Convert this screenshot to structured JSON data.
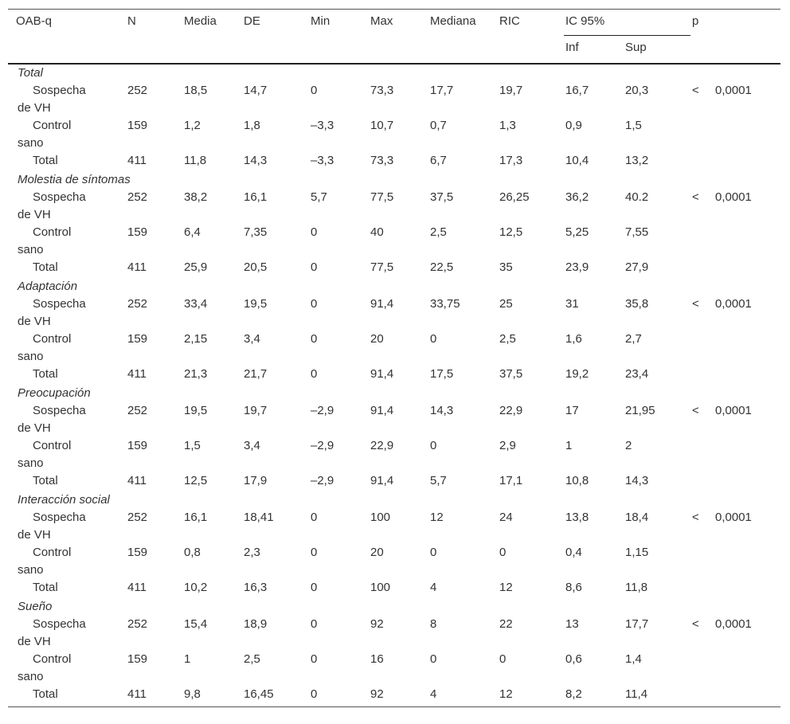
{
  "table": {
    "header": {
      "columns": [
        "OAB-q",
        "N",
        "Media",
        "DE",
        "Min",
        "Max",
        "Mediana",
        "RIC"
      ],
      "ci": "IC 95%",
      "inf": "Inf",
      "sup": "Sup",
      "p": "p"
    },
    "groups": [
      {
        "title": "Total",
        "rows": [
          [
            "Sospecha de VH",
            "252",
            "18,5",
            "14,7",
            "0",
            "73,3",
            "17,7",
            "19,7",
            "16,7",
            "20,3",
            "<",
            "0,0001"
          ],
          [
            "Control sano",
            "159",
            "1,2",
            "1,8",
            "–3,3",
            "10,7",
            "0,7",
            "1,3",
            "0,9",
            "1,5"
          ],
          [
            "Total",
            "411",
            "11,8",
            "14,3",
            "–3,3",
            "73,3",
            "6,7",
            "17,3",
            "10,4",
            "13,2"
          ]
        ]
      },
      {
        "title": "Molestia de síntomas",
        "rows": [
          [
            "Sospecha de VH",
            "252",
            "38,2",
            "16,1",
            "5,7",
            "77,5",
            "37,5",
            "26,25",
            "36,2",
            "40.2",
            "<",
            "0,0001"
          ],
          [
            "Control sano",
            "159",
            "6,4",
            "7,35",
            "0",
            "40",
            "2,5",
            "12,5",
            "5,25",
            "7,55"
          ],
          [
            "Total",
            "411",
            "25,9",
            "20,5",
            "0",
            "77,5",
            "22,5",
            "35",
            "23,9",
            "27,9"
          ]
        ]
      },
      {
        "title": "Adaptación",
        "rows": [
          [
            "Sospecha de VH",
            "252",
            "33,4",
            "19,5",
            "0",
            "91,4",
            "33,75",
            "25",
            "31",
            "35,8",
            "<",
            "0,0001"
          ],
          [
            "Control sano",
            "159",
            "2,15",
            "3,4",
            "0",
            "20",
            "0",
            "2,5",
            "1,6",
            "2,7"
          ],
          [
            "Total",
            "411",
            "21,3",
            "21,7",
            "0",
            "91,4",
            "17,5",
            "37,5",
            "19,2",
            "23,4"
          ]
        ]
      },
      {
        "title": "Preocupación",
        "rows": [
          [
            "Sospecha de VH",
            "252",
            "19,5",
            "19,7",
            "–2,9",
            "91,4",
            "14,3",
            "22,9",
            "17",
            "21,95",
            "<",
            "0,0001"
          ],
          [
            "Control sano",
            "159",
            "1,5",
            "3,4",
            "–2,9",
            "22,9",
            "0",
            "2,9",
            "1",
            "2"
          ],
          [
            "Total",
            "411",
            "12,5",
            "17,9",
            "–2,9",
            "91,4",
            "5,7",
            "17,1",
            "10,8",
            "14,3"
          ]
        ]
      },
      {
        "title": "Interacción social",
        "rows": [
          [
            "Sospecha de VH",
            "252",
            "16,1",
            "18,41",
            "0",
            "100",
            "12",
            "24",
            "13,8",
            "18,4",
            "<",
            "0,0001"
          ],
          [
            "Control sano",
            "159",
            "0,8",
            "2,3",
            "0",
            "20",
            "0",
            "0",
            "0,4",
            "1,15"
          ],
          [
            "Total",
            "411",
            "10,2",
            "16,3",
            "0",
            "100",
            "4",
            "12",
            "8,6",
            "11,8"
          ]
        ]
      },
      {
        "title": "Sueño",
        "rows": [
          [
            "Sospecha de VH",
            "252",
            "15,4",
            "18,9",
            "0",
            "92",
            "8",
            "22",
            "13",
            "17,7",
            "<",
            "0,0001"
          ],
          [
            "Control sano",
            "159",
            "1",
            "2,5",
            "0",
            "16",
            "0",
            "0",
            "0,6",
            "1,4"
          ],
          [
            "Total",
            "411",
            "9,8",
            "16,45",
            "0",
            "92",
            "4",
            "12",
            "8,2",
            "11,4"
          ]
        ]
      }
    ]
  }
}
